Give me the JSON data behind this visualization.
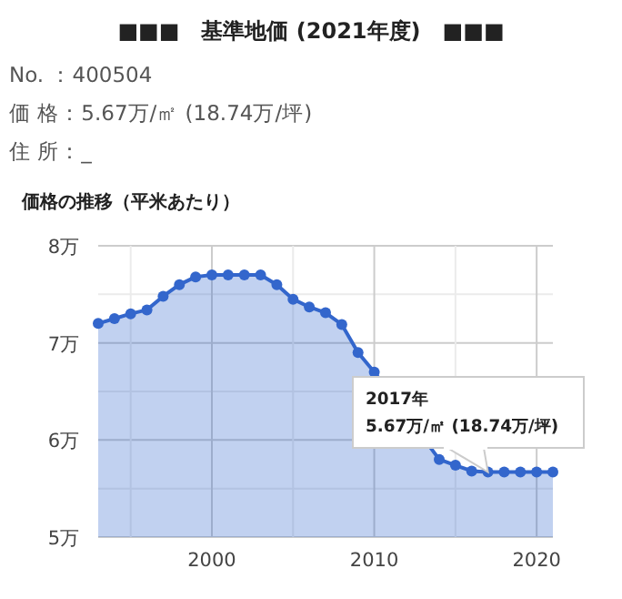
{
  "chart_data": {
    "type": "area",
    "title": "■■■　基準地価 (2021年度)　■■■",
    "subtitle": "価格の推移（平米あたり）",
    "annotations": [
      "No. ：400504",
      "価 格：5.67万/㎡ (18.74万/坪)",
      "住 所：_",
      {
        "text": "2017年\n5.67万/㎡ (18.74万/坪)",
        "x": 2017,
        "y": 5.67
      }
    ],
    "x": [
      1993,
      1994,
      1995,
      1996,
      1997,
      1998,
      1999,
      2000,
      2001,
      2002,
      2003,
      2004,
      2005,
      2006,
      2007,
      2008,
      2009,
      2010,
      2011,
      2012,
      2013,
      2014,
      2015,
      2016,
      2017,
      2018,
      2019,
      2020,
      2021
    ],
    "series": [
      {
        "color": "#3366cc",
        "values": [
          7.2,
          7.25,
          7.3,
          7.34,
          7.48,
          7.6,
          7.68,
          7.7,
          7.7,
          7.7,
          7.7,
          7.6,
          7.45,
          7.37,
          7.31,
          7.19,
          6.9,
          6.7,
          null,
          null,
          null,
          5.8,
          5.74,
          5.68,
          5.67,
          5.67,
          5.67,
          5.67,
          5.67
        ]
      }
    ],
    "xlim": [
      1993,
      2021
    ],
    "ylim": [
      5,
      8
    ],
    "xticks": [
      {
        "value": 1995,
        "label": null
      },
      2000,
      {
        "value": 2005,
        "label": null
      },
      2010,
      {
        "value": 2015,
        "label": null
      },
      2020
    ],
    "yticks": [
      {
        "value": 5,
        "label": "5万"
      },
      {
        "value": 5.5,
        "label": null
      },
      {
        "value": 6,
        "label": "6万"
      },
      {
        "value": 6.5,
        "label": null
      },
      {
        "value": 7,
        "label": "7万"
      },
      {
        "value": 7.5,
        "label": null
      },
      {
        "value": 8,
        "label": "8万"
      }
    ],
    "grid": true,
    "marker": "circle"
  }
}
